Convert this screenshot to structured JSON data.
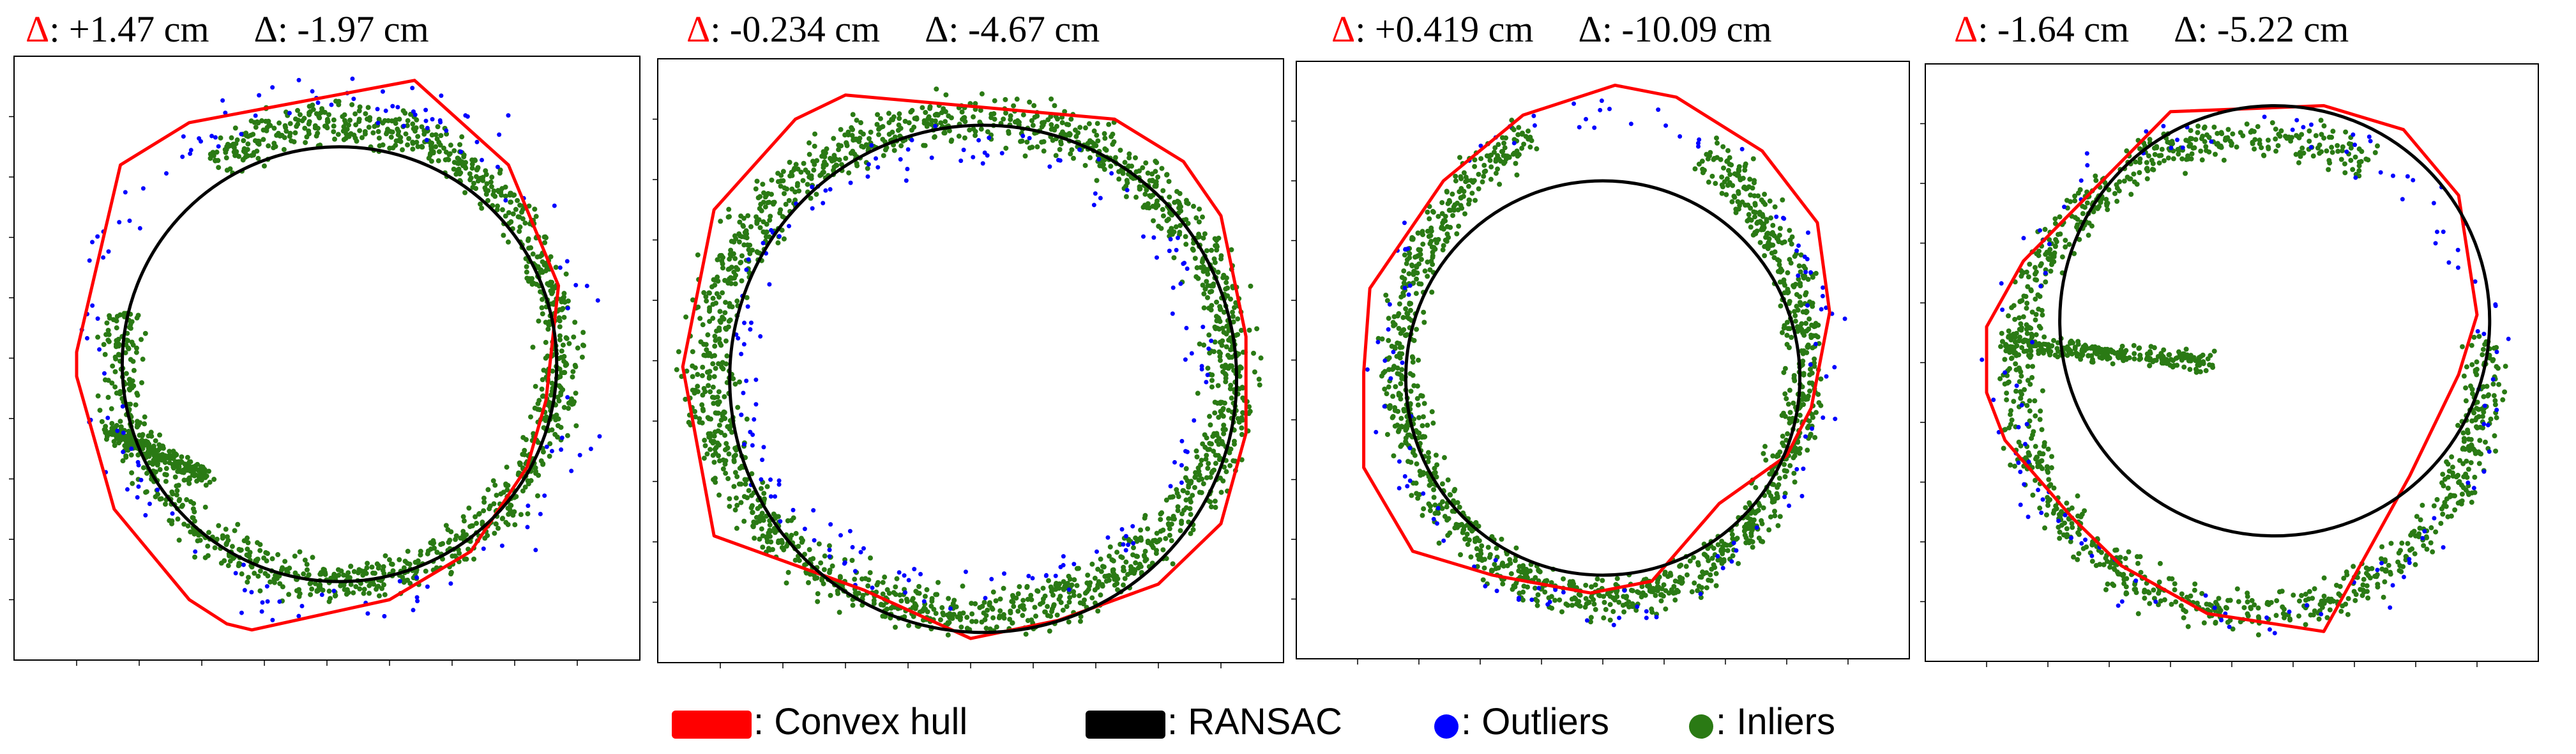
{
  "figure": {
    "delta_symbol": "Δ",
    "colors": {
      "hull": "#ff0000",
      "ransac": "#000000",
      "outliers": "#0000ff",
      "inliers": "#2a7a14",
      "frame": "#000000"
    }
  },
  "panels": [
    {
      "delta_hull": ": +1.47 cm",
      "delta_ransac": ": -1.97 cm"
    },
    {
      "delta_hull": ": -0.234 cm",
      "delta_ransac": ": -4.67 cm"
    },
    {
      "delta_hull": ": +0.419 cm",
      "delta_ransac": ": -10.09 cm"
    },
    {
      "delta_hull": ": -1.64 cm",
      "delta_ransac": ": -5.22 cm"
    }
  ],
  "legend": {
    "hull": ": Convex hull",
    "ransac": ": RANSAC",
    "outliers": ": Outliers",
    "inliers": ": Inliers"
  },
  "chart_data": [
    {
      "type": "scatter",
      "title": "Δ: +1.47 cm  Δ: -1.97 cm",
      "xlim": [
        0,
        1
      ],
      "ylim": [
        0,
        1
      ],
      "series": [
        {
          "name": "Convex hull",
          "kind": "polygon",
          "points": [
            [
              0.1,
              0.49
            ],
            [
              0.17,
              0.18
            ],
            [
              0.28,
              0.11
            ],
            [
              0.64,
              0.04
            ],
            [
              0.79,
              0.18
            ],
            [
              0.87,
              0.38
            ],
            [
              0.85,
              0.57
            ],
            [
              0.82,
              0.68
            ],
            [
              0.73,
              0.82
            ],
            [
              0.6,
              0.9
            ],
            [
              0.38,
              0.95
            ],
            [
              0.34,
              0.94
            ],
            [
              0.28,
              0.9
            ],
            [
              0.16,
              0.75
            ],
            [
              0.1,
              0.53
            ]
          ]
        },
        {
          "name": "RANSAC",
          "kind": "circle",
          "center": [
            0.52,
            0.51
          ],
          "radius": 0.36
        },
        {
          "name": "Inliers",
          "kind": "scatter",
          "shape": "ring",
          "center": [
            0.52,
            0.49
          ],
          "rx": 0.35,
          "ry": 0.38,
          "band": 0.05,
          "count": 1500,
          "gap": [
            190,
            235
          ],
          "arm": [
            [
              0.15,
              0.62
            ],
            [
              0.31,
              0.7
            ]
          ]
        },
        {
          "name": "Outliers",
          "kind": "scatter",
          "shape": "ring",
          "center": [
            0.52,
            0.49
          ],
          "rx": 0.39,
          "ry": 0.42,
          "band": 0.07,
          "count": 140
        }
      ]
    },
    {
      "type": "scatter",
      "title": "Δ: -0.234 cm  Δ: -4.67 cm",
      "xlim": [
        0,
        1
      ],
      "ylim": [
        0,
        1
      ],
      "series": [
        {
          "name": "Convex hull",
          "kind": "polygon",
          "points": [
            [
              0.09,
              0.25
            ],
            [
              0.22,
              0.1
            ],
            [
              0.3,
              0.06
            ],
            [
              0.73,
              0.1
            ],
            [
              0.84,
              0.17
            ],
            [
              0.9,
              0.26
            ],
            [
              0.94,
              0.46
            ],
            [
              0.94,
              0.62
            ],
            [
              0.9,
              0.77
            ],
            [
              0.8,
              0.87
            ],
            [
              0.64,
              0.93
            ],
            [
              0.5,
              0.96
            ],
            [
              0.33,
              0.88
            ],
            [
              0.09,
              0.79
            ],
            [
              0.04,
              0.51
            ]
          ]
        },
        {
          "name": "RANSAC",
          "kind": "circle",
          "center": [
            0.52,
            0.53
          ],
          "radius": 0.42
        },
        {
          "name": "Inliers",
          "kind": "scatter",
          "shape": "ring",
          "center": [
            0.5,
            0.51
          ],
          "rx": 0.42,
          "ry": 0.41,
          "band": 0.06,
          "count": 1800
        },
        {
          "name": "Outliers",
          "kind": "scatter",
          "shape": "ring",
          "center": [
            0.5,
            0.51
          ],
          "rx": 0.37,
          "ry": 0.37,
          "band": 0.05,
          "count": 160
        }
      ]
    },
    {
      "type": "scatter",
      "title": "Δ: +0.419 cm  Δ: -10.09 cm",
      "xlim": [
        0,
        1
      ],
      "ylim": [
        0,
        1
      ],
      "series": [
        {
          "name": "Convex hull",
          "kind": "polygon",
          "points": [
            [
              0.11,
              0.52
            ],
            [
              0.12,
              0.38
            ],
            [
              0.24,
              0.2
            ],
            [
              0.37,
              0.09
            ],
            [
              0.52,
              0.04
            ],
            [
              0.62,
              0.06
            ],
            [
              0.76,
              0.15
            ],
            [
              0.85,
              0.27
            ],
            [
              0.87,
              0.42
            ],
            [
              0.84,
              0.58
            ],
            [
              0.8,
              0.66
            ],
            [
              0.69,
              0.74
            ],
            [
              0.58,
              0.87
            ],
            [
              0.48,
              0.89
            ],
            [
              0.32,
              0.86
            ],
            [
              0.19,
              0.82
            ],
            [
              0.11,
              0.68
            ]
          ]
        },
        {
          "name": "RANSAC",
          "kind": "circle",
          "center": [
            0.5,
            0.53
          ],
          "radius": 0.33
        },
        {
          "name": "Inliers",
          "kind": "scatter",
          "shape": "ring",
          "center": [
            0.5,
            0.5
          ],
          "rx": 0.33,
          "ry": 0.4,
          "band": 0.05,
          "count": 1500,
          "gap": [
            250,
            300
          ]
        },
        {
          "name": "Outliers",
          "kind": "scatter",
          "shape": "ring",
          "center": [
            0.5,
            0.5
          ],
          "rx": 0.36,
          "ry": 0.42,
          "band": 0.05,
          "count": 110
        }
      ]
    },
    {
      "type": "scatter",
      "title": "Δ: -1.64 cm  Δ: -5.22 cm",
      "xlim": [
        0,
        1
      ],
      "ylim": [
        0,
        1
      ],
      "series": [
        {
          "name": "Convex hull",
          "kind": "polygon",
          "points": [
            [
              0.1,
              0.44
            ],
            [
              0.16,
              0.33
            ],
            [
              0.4,
              0.08
            ],
            [
              0.65,
              0.07
            ],
            [
              0.78,
              0.11
            ],
            [
              0.87,
              0.22
            ],
            [
              0.9,
              0.42
            ],
            [
              0.87,
              0.52
            ],
            [
              0.79,
              0.69
            ],
            [
              0.65,
              0.95
            ],
            [
              0.46,
              0.92
            ],
            [
              0.32,
              0.84
            ],
            [
              0.24,
              0.76
            ],
            [
              0.13,
              0.63
            ],
            [
              0.1,
              0.55
            ]
          ]
        },
        {
          "name": "RANSAC",
          "kind": "circle",
          "center": [
            0.57,
            0.43
          ],
          "radius": 0.36
        },
        {
          "name": "Inliers",
          "kind": "scatter",
          "shape": "ring",
          "center": [
            0.53,
            0.52
          ],
          "rx": 0.38,
          "ry": 0.4,
          "band": 0.05,
          "count": 1200,
          "gap": [
            300,
            350
          ],
          "arm": [
            [
              0.12,
              0.47
            ],
            [
              0.47,
              0.5
            ]
          ]
        },
        {
          "name": "Outliers",
          "kind": "scatter",
          "shape": "ring",
          "center": [
            0.53,
            0.52
          ],
          "rx": 0.4,
          "ry": 0.42,
          "band": 0.06,
          "count": 120
        }
      ]
    }
  ]
}
